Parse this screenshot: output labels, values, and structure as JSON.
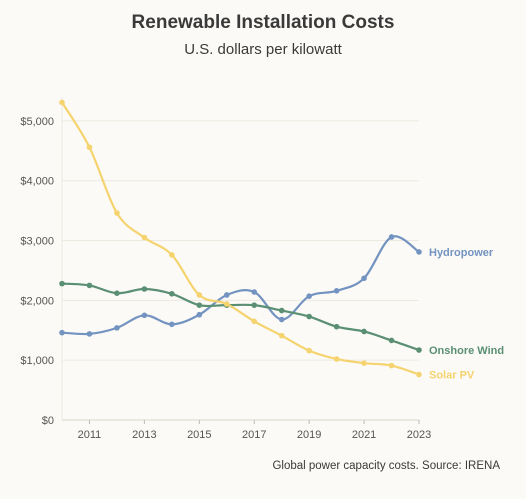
{
  "chart_data": {
    "type": "line",
    "title": "Renewable Installation Costs",
    "subtitle": "U.S. dollars per kilowatt",
    "source": "Global power capacity costs. Source: IRENA",
    "x": [
      2010,
      2011,
      2012,
      2013,
      2014,
      2015,
      2016,
      2017,
      2018,
      2019,
      2020,
      2021,
      2022,
      2023
    ],
    "xticks": [
      "2011",
      "2013",
      "2015",
      "2017",
      "2019",
      "2021",
      "2023"
    ],
    "yticks": [
      "$0",
      "$1,000",
      "$2,000",
      "$3,000",
      "$4,000",
      "$5,000"
    ],
    "xlim": [
      2010,
      2023
    ],
    "ylim": [
      0,
      5400
    ],
    "grid": true,
    "legend": "direct labels at line ends",
    "series": [
      {
        "name": "Hydropower",
        "color": "#7393c0",
        "values": [
          1460,
          1440,
          1540,
          1750,
          1600,
          1760,
          2090,
          2140,
          1680,
          2070,
          2160,
          2370,
          3060,
          2810
        ]
      },
      {
        "name": "Onshore Wind",
        "color": "#5a8f73",
        "values": [
          2280,
          2250,
          2120,
          2190,
          2110,
          1920,
          1920,
          1920,
          1830,
          1730,
          1560,
          1480,
          1330,
          1170
        ]
      },
      {
        "name": "Solar PV",
        "color": "#f5d36e",
        "values": [
          5310,
          4560,
          3460,
          3050,
          2760,
          2090,
          1940,
          1650,
          1410,
          1160,
          1020,
          950,
          910,
          760
        ]
      }
    ]
  }
}
